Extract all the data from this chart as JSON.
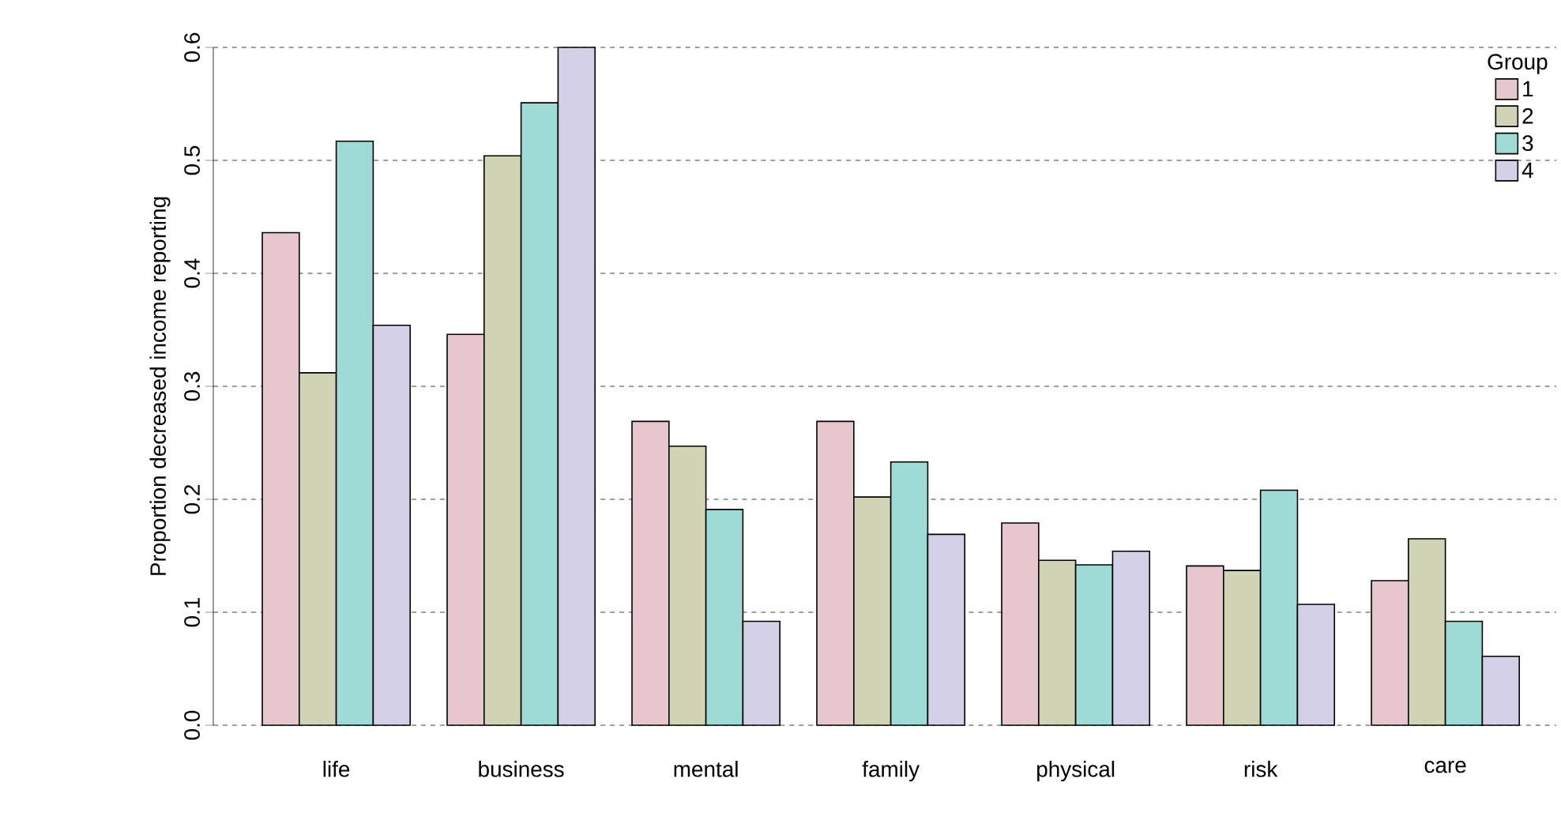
{
  "chart_data": {
    "type": "bar",
    "ylabel": "Proportion decreased income reporting",
    "legend_title": "Group",
    "legend": "top right",
    "grid": "y",
    "categories": [
      "life",
      "business",
      "mental",
      "family",
      "physical",
      "risk",
      "care"
    ],
    "ylim": [
      0,
      0.6
    ],
    "yticks": [
      {
        "value": 0,
        "label": "0.0"
      },
      0.1,
      0.2,
      0.3,
      0.4,
      0.5,
      0.6
    ],
    "series": [
      {
        "name": "1",
        "color": "#e8c6cd",
        "values": [
          0.436,
          0.346,
          0.269,
          0.269,
          0.179,
          0.141,
          0.128
        ]
      },
      {
        "name": "2",
        "color": "#d1d4b4",
        "values": [
          0.312,
          0.504,
          0.247,
          0.202,
          0.146,
          0.137,
          0.165
        ]
      },
      {
        "name": "3",
        "color": "#9ddbd4",
        "values": [
          0.517,
          0.551,
          0.191,
          0.233,
          0.142,
          0.208,
          0.092
        ]
      },
      {
        "name": "4",
        "color": "#d4d0e8",
        "values": [
          0.354,
          0.6,
          0.092,
          0.169,
          0.154,
          0.107,
          0.061
        ]
      }
    ]
  }
}
